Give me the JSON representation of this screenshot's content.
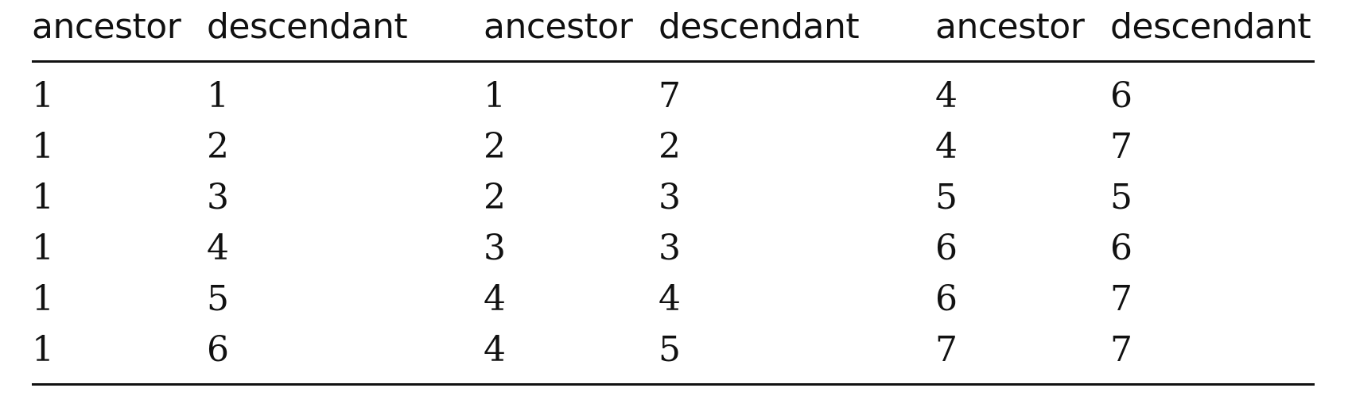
{
  "table": {
    "headers": [
      "ancestor",
      "descendant",
      "ancestor",
      "descendant",
      "ancestor",
      "descendant"
    ],
    "rows": [
      [
        "1",
        "1",
        "1",
        "7",
        "4",
        "6"
      ],
      [
        "1",
        "2",
        "2",
        "2",
        "4",
        "7"
      ],
      [
        "1",
        "3",
        "2",
        "3",
        "5",
        "5"
      ],
      [
        "1",
        "4",
        "3",
        "3",
        "6",
        "6"
      ],
      [
        "1",
        "5",
        "4",
        "4",
        "6",
        "7"
      ],
      [
        "1",
        "6",
        "4",
        "5",
        "7",
        "7"
      ]
    ]
  }
}
